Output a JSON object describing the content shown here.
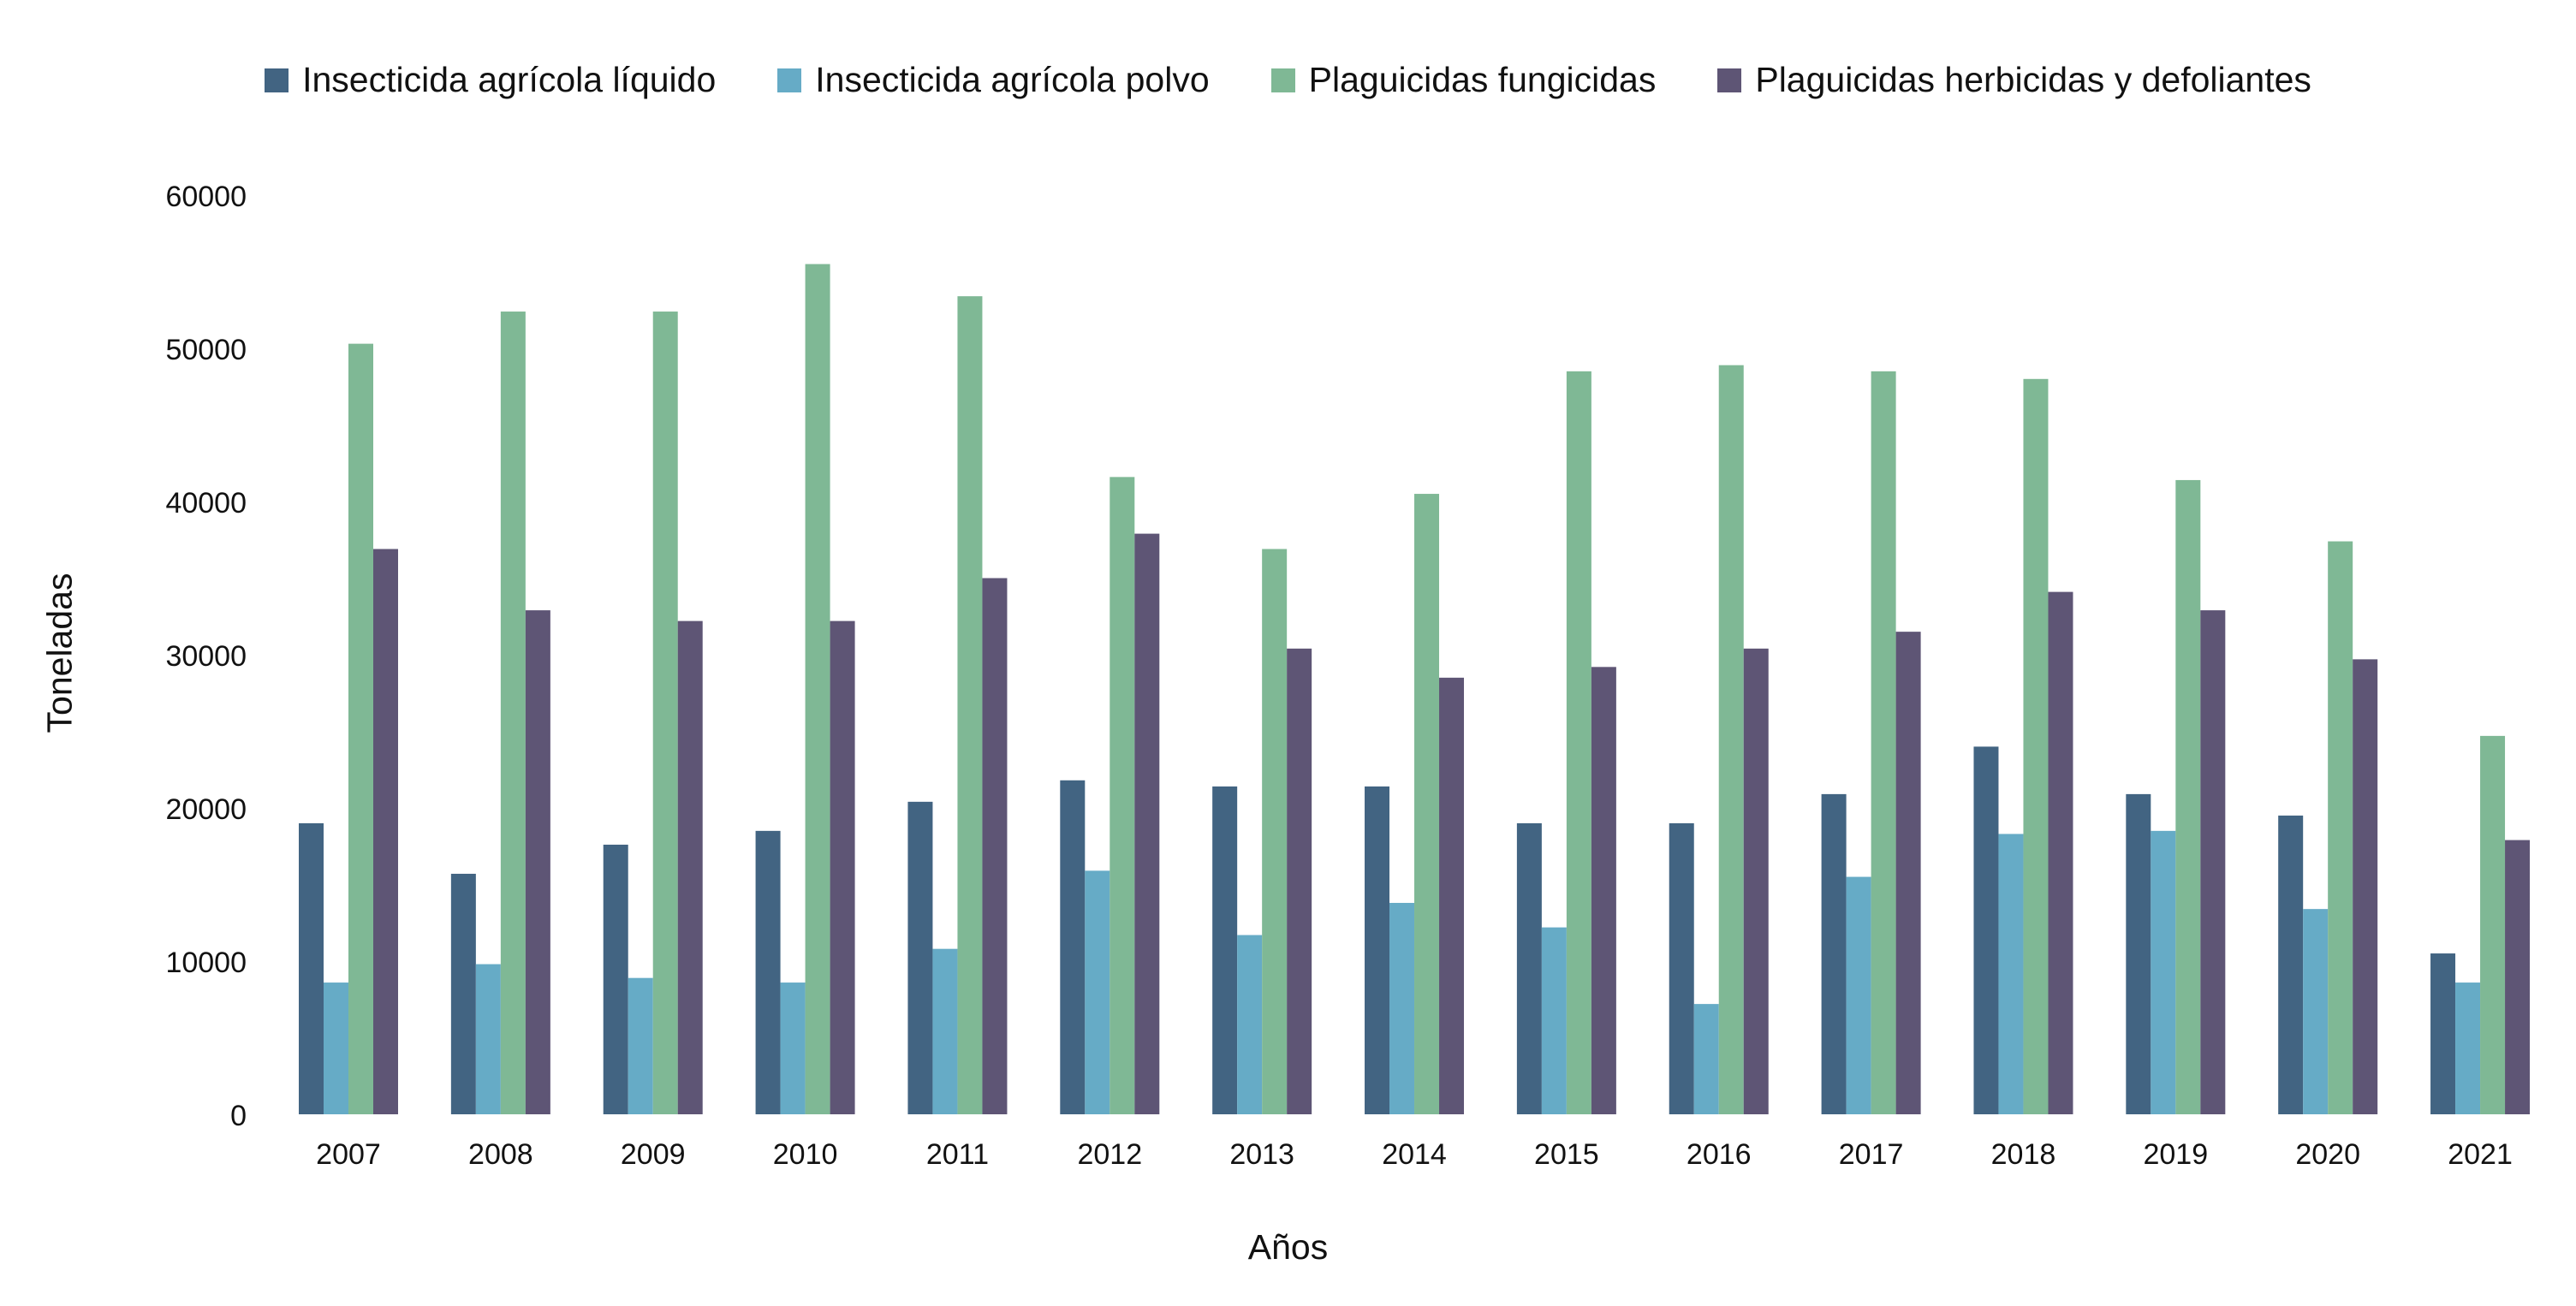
{
  "chart_data": {
    "type": "bar",
    "title": "",
    "xlabel": "Años",
    "ylabel": "Toneladas",
    "ylim": [
      0,
      60000
    ],
    "yticks": [
      0,
      10000,
      20000,
      30000,
      40000,
      50000,
      60000
    ],
    "categories": [
      "2007",
      "2008",
      "2009",
      "2010",
      "2011",
      "2012",
      "2013",
      "2014",
      "2015",
      "2016",
      "2017",
      "2018",
      "2019",
      "2020",
      "2021"
    ],
    "legend_position": "top",
    "grid": false,
    "series": [
      {
        "name": "Insecticida agrícola líquido",
        "color": "#426482",
        "values": [
          19000,
          15700,
          17600,
          18500,
          20400,
          21800,
          21400,
          21400,
          19000,
          19000,
          20900,
          24000,
          20900,
          19500,
          10500
        ]
      },
      {
        "name": "Insecticida agrícola polvo",
        "color": "#66abc6",
        "values": [
          8600,
          9800,
          8900,
          8600,
          10800,
          15900,
          11700,
          13800,
          12200,
          7200,
          15500,
          18300,
          18500,
          13400,
          8600
        ]
      },
      {
        "name": "Plaguicidas fungicidas",
        "color": "#7fb895",
        "values": [
          50300,
          52400,
          52400,
          55500,
          53400,
          41600,
          36900,
          40500,
          48500,
          48900,
          48500,
          48000,
          41400,
          37400,
          24700
        ]
      },
      {
        "name": "Plaguicidas herbicidas y defoliantes",
        "color": "#5e5575",
        "values": [
          36900,
          32900,
          32200,
          32200,
          35000,
          37900,
          30400,
          28500,
          29200,
          30400,
          31500,
          34100,
          32900,
          29700,
          17900
        ]
      }
    ]
  }
}
